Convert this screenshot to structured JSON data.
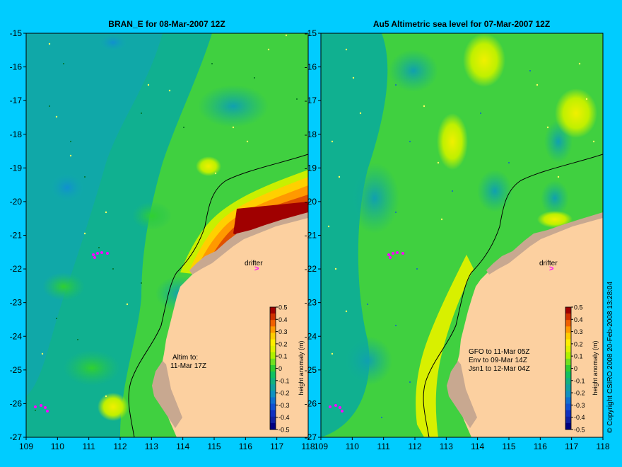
{
  "panels": [
    {
      "id": "bran",
      "title": "BRAN_E for 08-Mar-2007 12Z",
      "annotation_lines": [
        "Altim to:",
        "11-Mar 17Z"
      ],
      "drifter_label": "drifter"
    },
    {
      "id": "au5",
      "title": "Au5 Altimetric sea level  for 07-Mar-2007 12Z",
      "annotation_lines": [
        "GFO to 11-Mar 05Z",
        "Env to 09-Mar 14Z",
        "Jsn1 to 12-Mar 04Z"
      ],
      "drifter_label": "drifter"
    }
  ],
  "axes": {
    "lon_ticks": [
      "109",
      "110",
      "111",
      "112",
      "113",
      "114",
      "115",
      "116",
      "117",
      "118"
    ],
    "lat_ticks": [
      "-15",
      "-16",
      "-17",
      "-18",
      "-19",
      "-20",
      "-21",
      "-22",
      "-23",
      "-24",
      "-25",
      "-26",
      "-27"
    ]
  },
  "colorbar": {
    "label": "height anomaly (m)",
    "ticks": [
      "0.5",
      "0.4",
      "0.3",
      "0.2",
      "0.1",
      "0",
      "-0.1",
      "-0.2",
      "-0.3",
      "-0.4",
      "-0.5"
    ],
    "colors": [
      "#a00000",
      "#d03000",
      "#f06000",
      "#ff9900",
      "#ffcc00",
      "#ffee00",
      "#e0f000",
      "#b0f000",
      "#70e020",
      "#30cc30",
      "#10c060",
      "#10b080",
      "#10a0a0",
      "#1090c0",
      "#1070d0",
      "#1050d0",
      "#1030c0",
      "#1020a0",
      "#000080"
    ]
  },
  "copyright": "© Copyright CSIRO 2008   20-Feb-2008 13:28:04",
  "colors": {
    "background": "#00ccff",
    "land": "#fcd0a0",
    "shallow": "#c8a890",
    "drifter": "#ff00ff"
  }
}
